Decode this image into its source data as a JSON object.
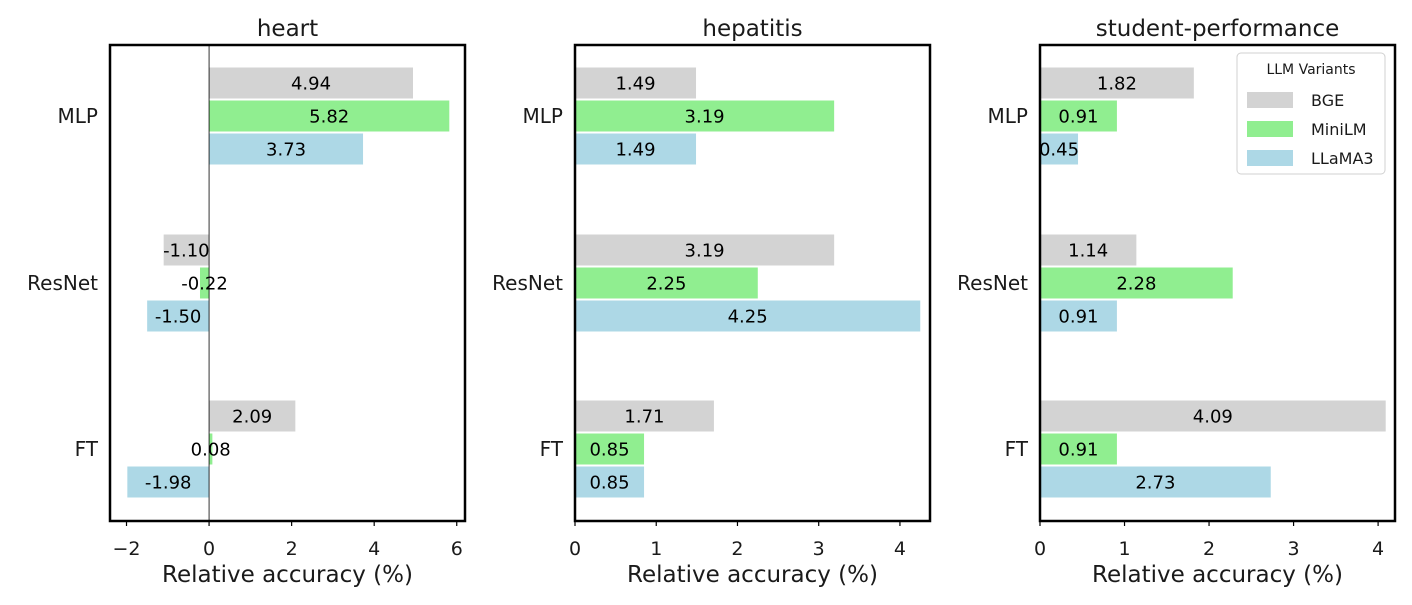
{
  "chart_data": [
    {
      "type": "bar",
      "orientation": "horizontal",
      "title": "heart",
      "xlabel": "Relative accuracy (%)",
      "categories": [
        "MLP",
        "ResNet",
        "FT"
      ],
      "xlim": [
        -2.4,
        6.2
      ],
      "xticks": [
        -2,
        0,
        2,
        4,
        6
      ],
      "xtick_labels": [
        "−2",
        "0",
        "2",
        "4",
        "6"
      ],
      "zero_line": true,
      "series": [
        {
          "name": "BGE",
          "values": [
            4.94,
            -1.1,
            2.09
          ],
          "labels": [
            "4.94",
            "-1.10",
            "2.09"
          ]
        },
        {
          "name": "MiniLM",
          "values": [
            5.82,
            -0.22,
            0.08
          ],
          "labels": [
            "5.82",
            "-0.22",
            "0.08"
          ]
        },
        {
          "name": "LLaMA3",
          "values": [
            3.73,
            -1.5,
            -1.98
          ],
          "labels": [
            "3.73",
            "-1.50",
            "-1.98"
          ]
        }
      ]
    },
    {
      "type": "bar",
      "orientation": "horizontal",
      "title": "hepatitis",
      "xlabel": "Relative accuracy (%)",
      "categories": [
        "MLP",
        "ResNet",
        "FT"
      ],
      "xlim": [
        0,
        4.37
      ],
      "xticks": [
        0,
        1,
        2,
        3,
        4
      ],
      "xtick_labels": [
        "0",
        "1",
        "2",
        "3",
        "4"
      ],
      "zero_line": false,
      "series": [
        {
          "name": "BGE",
          "values": [
            1.49,
            3.19,
            1.71
          ],
          "labels": [
            "1.49",
            "3.19",
            "1.71"
          ]
        },
        {
          "name": "MiniLM",
          "values": [
            3.19,
            2.25,
            0.85
          ],
          "labels": [
            "3.19",
            "2.25",
            "0.85"
          ]
        },
        {
          "name": "LLaMA3",
          "values": [
            1.49,
            4.25,
            0.85
          ],
          "labels": [
            "1.49",
            "4.25",
            "0.85"
          ]
        }
      ]
    },
    {
      "type": "bar",
      "orientation": "horizontal",
      "title": "student-performance",
      "xlabel": "Relative accuracy (%)",
      "categories": [
        "MLP",
        "ResNet",
        "FT"
      ],
      "xlim": [
        0,
        4.2
      ],
      "xticks": [
        0,
        1,
        2,
        3,
        4
      ],
      "xtick_labels": [
        "0",
        "1",
        "2",
        "3",
        "4"
      ],
      "zero_line": false,
      "series": [
        {
          "name": "BGE",
          "values": [
            1.82,
            1.14,
            4.09
          ],
          "labels": [
            "1.82",
            "1.14",
            "4.09"
          ]
        },
        {
          "name": "MiniLM",
          "values": [
            0.91,
            2.28,
            0.91
          ],
          "labels": [
            "0.91",
            "2.28",
            "0.91"
          ]
        },
        {
          "name": "LLaMA3",
          "values": [
            0.45,
            0.91,
            2.73
          ],
          "labels": [
            "0.45",
            "0.91",
            "2.73"
          ]
        }
      ]
    }
  ],
  "legend": {
    "title": "LLM Variants",
    "placement": "top-right of last panel",
    "entries": [
      {
        "name": "BGE",
        "color": "#d3d3d3"
      },
      {
        "name": "MiniLM",
        "color": "#90ee90"
      },
      {
        "name": "LLaMA3",
        "color": "#add8e6"
      }
    ]
  },
  "colors": {
    "BGE": "#d3d3d3",
    "MiniLM": "#90ee90",
    "LLaMA3": "#add8e6",
    "frame": "#000000"
  }
}
